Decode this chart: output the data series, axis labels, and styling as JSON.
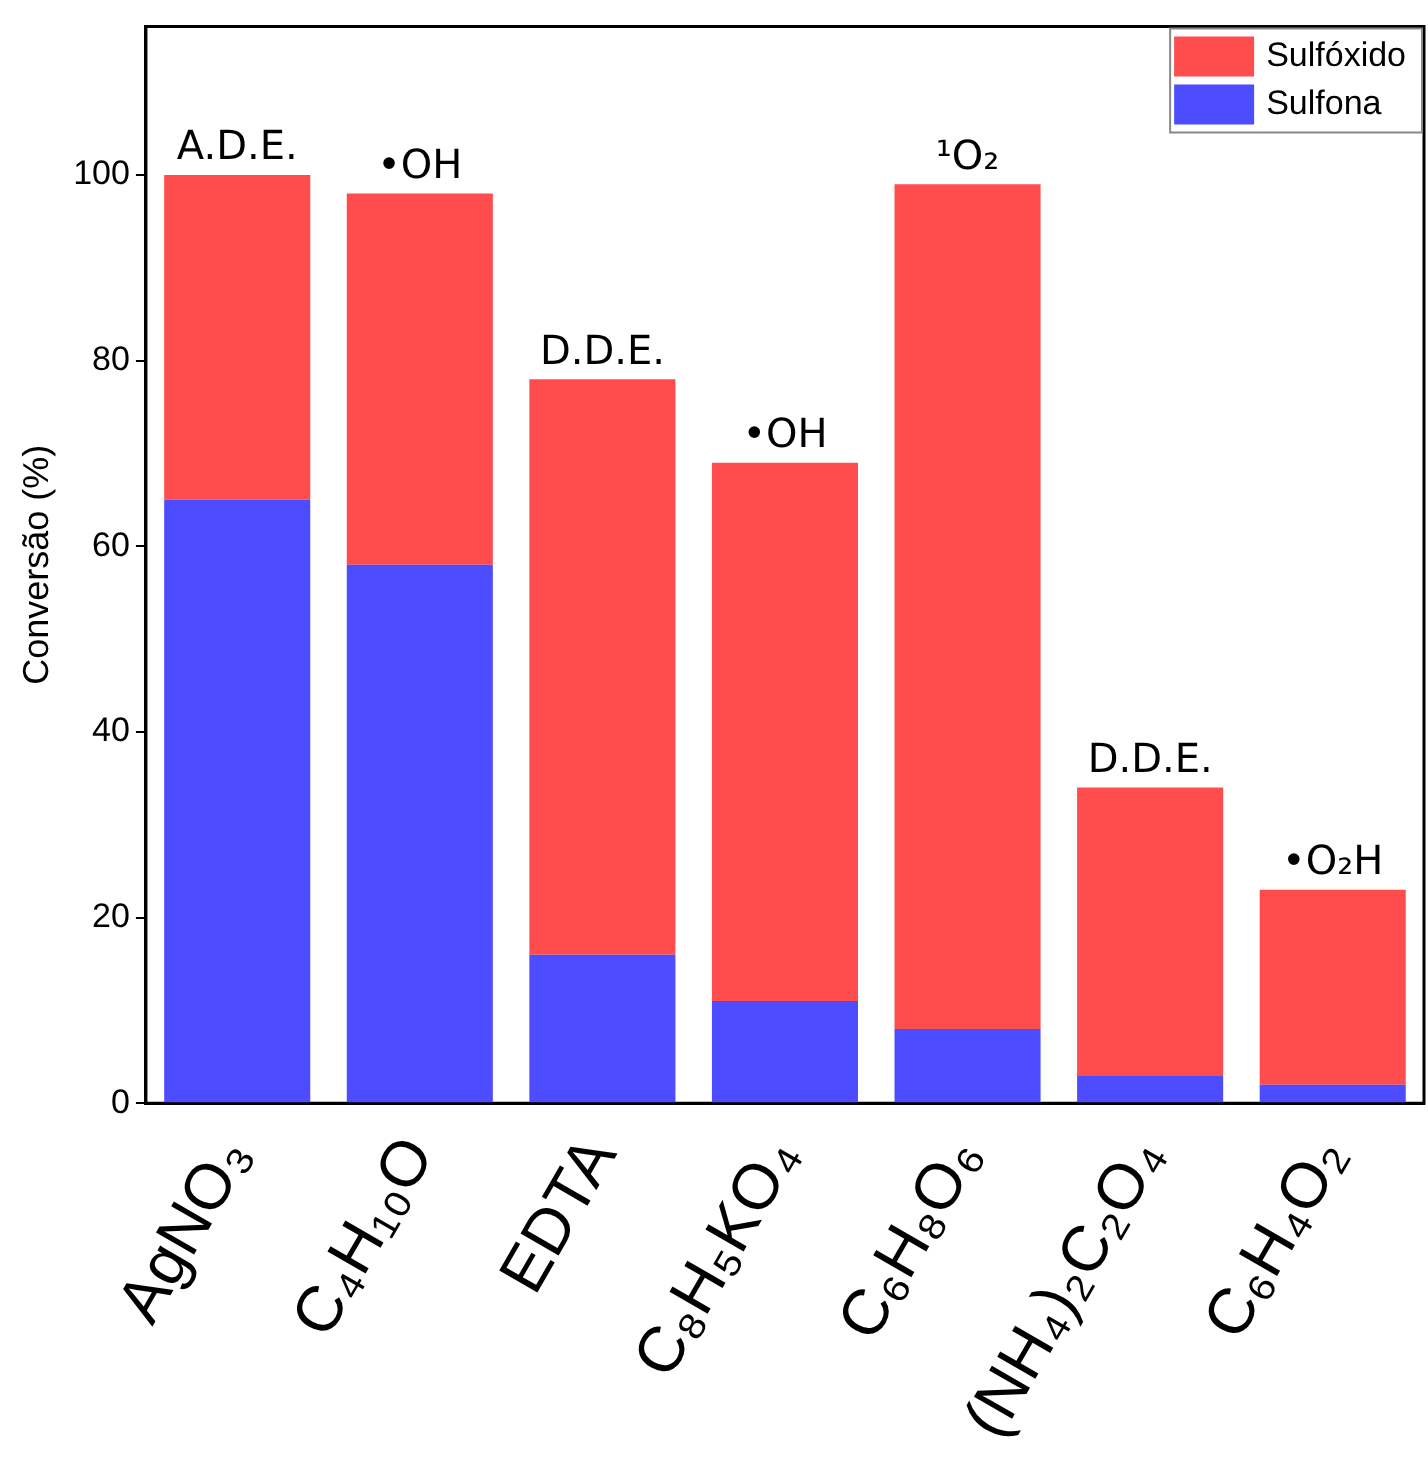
{
  "chart_data": {
    "type": "bar",
    "stacked": true,
    "ylabel": "Conversão (%)",
    "categories": [
      "AgNO₃",
      "C₄H₁₀O",
      "EDTA",
      "C₈H₅KO₄",
      "C₆H₈O₆",
      "(NH₄)₂C₂O₄",
      "C₆H₄O₂"
    ],
    "series": [
      {
        "name": "Sulfona",
        "color": "#4d4dff",
        "values": [
          65,
          58,
          16,
          11,
          8,
          3,
          2
        ]
      },
      {
        "name": "Sulfóxido",
        "color": "#ff4d4d",
        "values": [
          35,
          40,
          62,
          58,
          91,
          31,
          21
        ]
      }
    ],
    "ylim": [
      0,
      116
    ],
    "yticks": [
      0,
      20,
      40,
      60,
      80,
      100
    ],
    "grid": false,
    "legend": "top right",
    "annotations": [
      {
        "text": "A.D.E.",
        "x": "AgNO₃",
        "y": 100
      },
      {
        "text": "•OH",
        "x": "C₄H₁₀O",
        "y": 98
      },
      {
        "text": "D.D.E.",
        "x": "EDTA",
        "y": 78
      },
      {
        "text": "•OH",
        "x": "C₈H₅KO₄",
        "y": 69
      },
      {
        "text": "¹O₂",
        "x": "C₆H₈O₆",
        "y": 99
      },
      {
        "text": "D.D.E.",
        "x": "(NH₄)₂C₂O₄",
        "y": 34
      },
      {
        "text": "•O₂H",
        "x": "C₆H₄O₂",
        "y": 23
      }
    ]
  }
}
